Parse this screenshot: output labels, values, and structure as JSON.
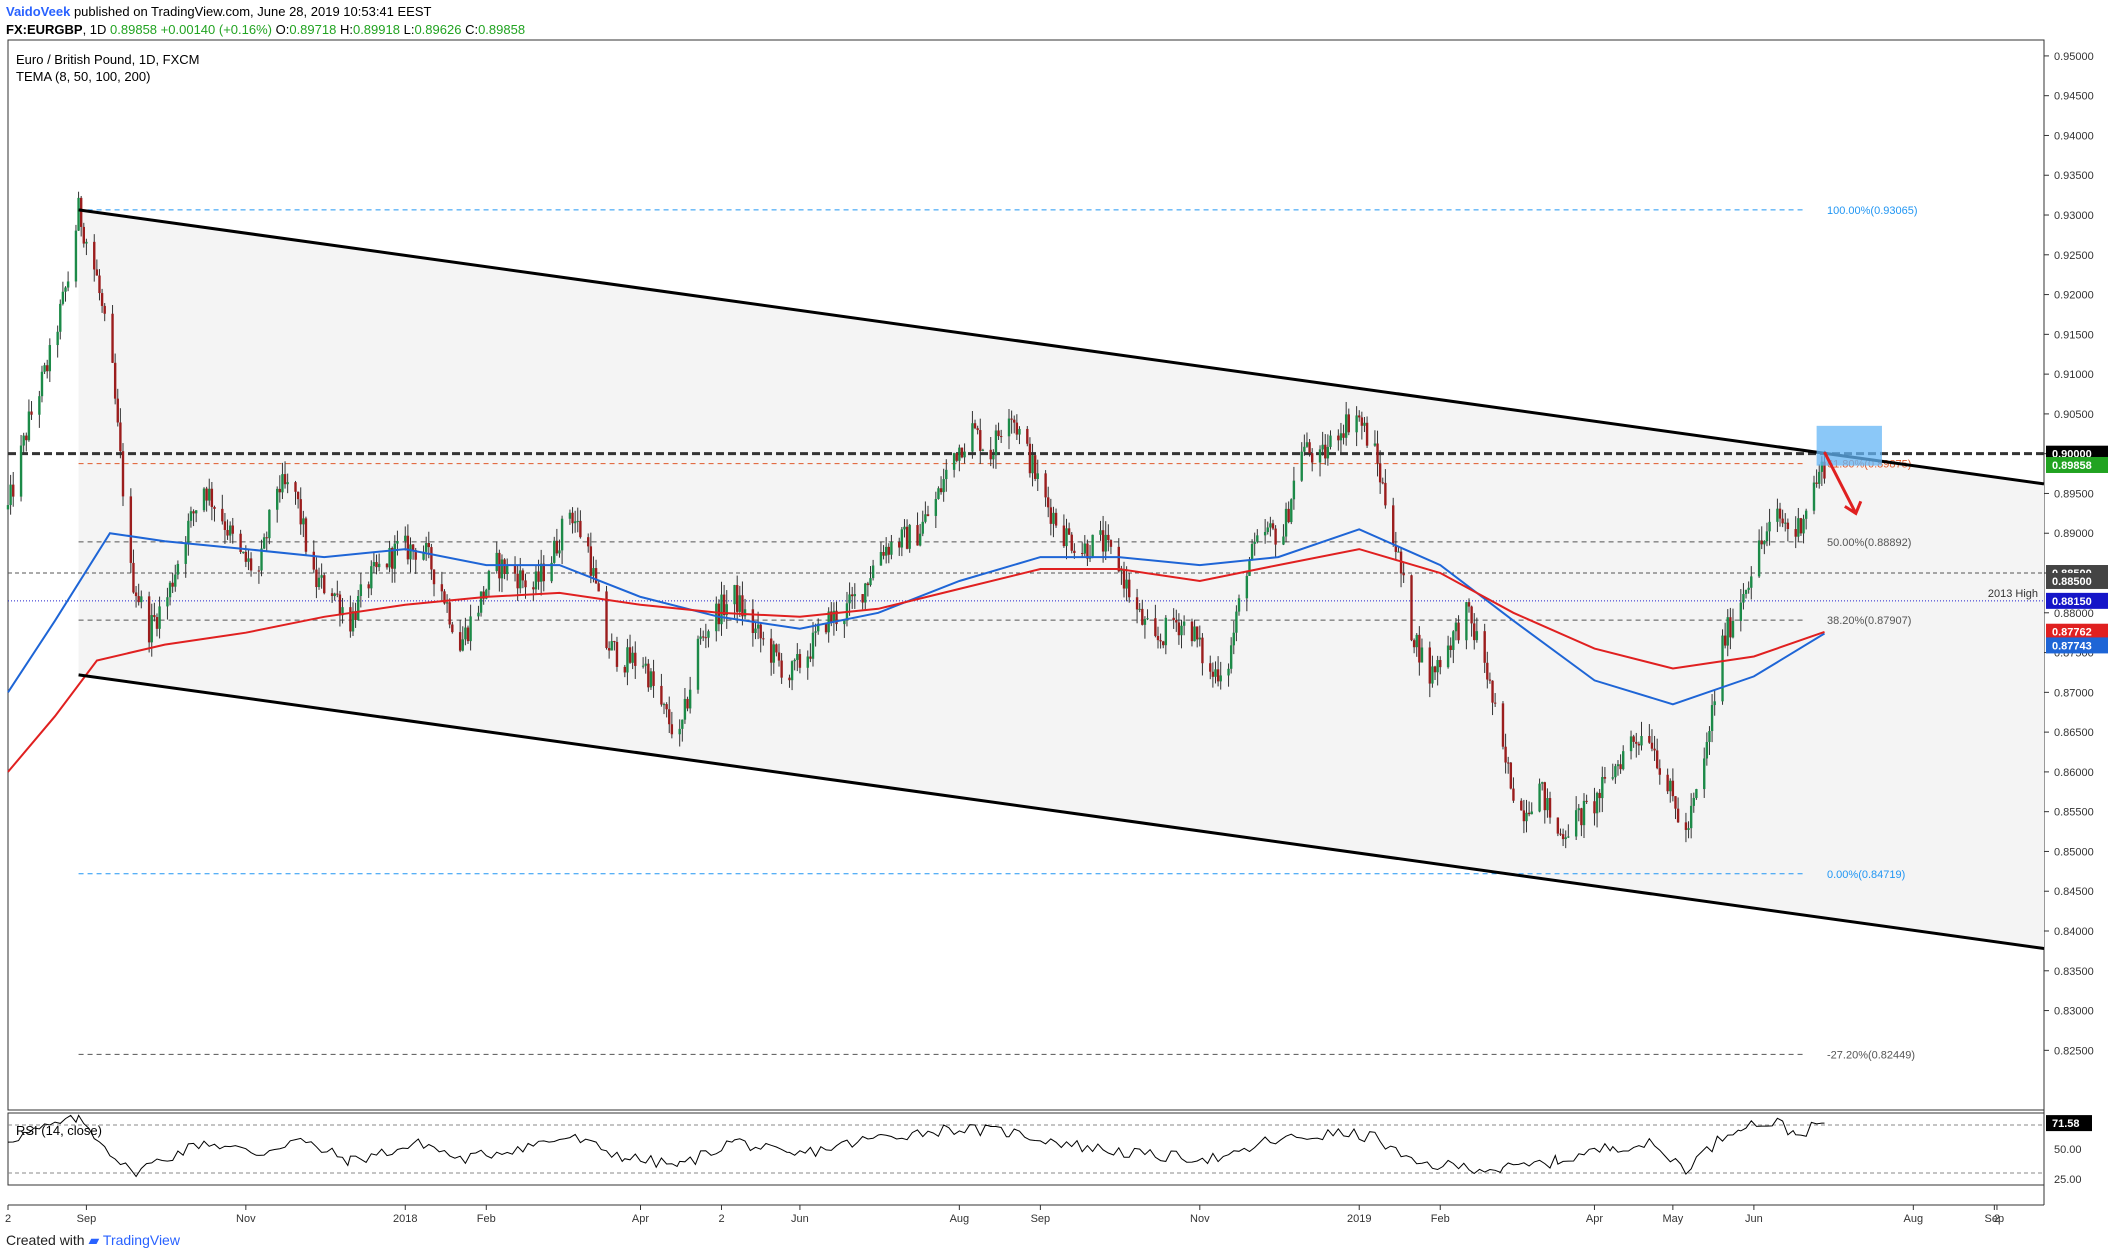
{
  "header": {
    "author": "VaidoVeek",
    "published_text": "published on TradingView.com, June 28, 2019 10:53:41 EEST",
    "symbol": "FX:EURGBP",
    "interval": "1D",
    "last": "0.89858",
    "change": "+0.00140 (+0.16%)",
    "o_label": "O:",
    "open": "0.89718",
    "h_label": "H:",
    "high": "0.89918",
    "l_label": "L:",
    "low": "0.89626",
    "c_label": "C:",
    "close": "0.89858"
  },
  "legend": {
    "title": "Euro / British Pound, 1D, FXCM",
    "indicator": "TEMA (8, 50, 100, 200)"
  },
  "footer": {
    "created_with": "Created with",
    "brand": "TradingView"
  },
  "chart_data": [
    {
      "type": "candlestick",
      "title": "Euro / British Pound, 1D, FXCM",
      "ylim": [
        0.8175,
        0.952
      ],
      "y_ticks": [
        "0.95000",
        "0.94500",
        "0.94000",
        "0.93500",
        "0.93000",
        "0.92500",
        "0.92000",
        "0.91500",
        "0.91000",
        "0.90500",
        "0.90000",
        "0.89500",
        "0.89000",
        "0.88500",
        "0.88000",
        "0.87500",
        "0.87000",
        "0.86500",
        "0.86000",
        "0.85500",
        "0.85000",
        "0.84500",
        "0.84000",
        "0.83500",
        "0.83000",
        "0.82500"
      ],
      "x_range": [
        "2017-08-02",
        "2019-09-20"
      ],
      "x_ticks": [
        {
          "label": "2",
          "date": "2017-08-02"
        },
        {
          "label": "Sep",
          "date": "2017-09-01"
        },
        {
          "label": "Nov",
          "date": "2017-11-01"
        },
        {
          "label": "2018",
          "date": "2018-01-01"
        },
        {
          "label": "Feb",
          "date": "2018-02-01"
        },
        {
          "label": "Apr",
          "date": "2018-04-01"
        },
        {
          "label": "2",
          "date": "2018-05-02"
        },
        {
          "label": "Jun",
          "date": "2018-06-01"
        },
        {
          "label": "Aug",
          "date": "2018-08-01"
        },
        {
          "label": "Sep",
          "date": "2018-09-01"
        },
        {
          "label": "Nov",
          "date": "2018-11-01"
        },
        {
          "label": "2019",
          "date": "2019-01-01"
        },
        {
          "label": "Feb",
          "date": "2019-02-01"
        },
        {
          "label": "Apr",
          "date": "2019-04-01"
        },
        {
          "label": "May",
          "date": "2019-05-01"
        },
        {
          "label": "Jun",
          "date": "2019-06-01"
        },
        {
          "label": "Aug",
          "date": "2019-08-01"
        },
        {
          "label": "Sep",
          "date": "2019-09-01"
        },
        {
          "label": "2",
          "date": "2019-09-02"
        }
      ],
      "price_path": [
        [
          "2017-08-02",
          0.893
        ],
        [
          "2017-08-10",
          0.904
        ],
        [
          "2017-08-18",
          0.912
        ],
        [
          "2017-08-25",
          0.922
        ],
        [
          "2017-08-29",
          0.9306
        ],
        [
          "2017-09-05",
          0.922
        ],
        [
          "2017-09-11",
          0.91
        ],
        [
          "2017-09-18",
          0.885
        ],
        [
          "2017-09-25",
          0.878
        ],
        [
          "2017-10-02",
          0.882
        ],
        [
          "2017-10-09",
          0.89
        ],
        [
          "2017-10-16",
          0.896
        ],
        [
          "2017-10-23",
          0.892
        ],
        [
          "2017-10-30",
          0.887
        ],
        [
          "2017-11-06",
          0.885
        ],
        [
          "2017-11-13",
          0.896
        ],
        [
          "2017-11-20",
          0.895
        ],
        [
          "2017-11-27",
          0.884
        ],
        [
          "2017-12-04",
          0.883
        ],
        [
          "2017-12-11",
          0.879
        ],
        [
          "2017-12-18",
          0.884
        ],
        [
          "2017-12-29",
          0.888
        ],
        [
          "2018-01-08",
          0.888
        ],
        [
          "2018-01-15",
          0.883
        ],
        [
          "2018-01-22",
          0.876
        ],
        [
          "2018-01-29",
          0.881
        ],
        [
          "2018-02-05",
          0.886
        ],
        [
          "2018-02-12",
          0.885
        ],
        [
          "2018-02-19",
          0.883
        ],
        [
          "2018-02-26",
          0.887
        ],
        [
          "2018-03-05",
          0.893
        ],
        [
          "2018-03-12",
          0.888
        ],
        [
          "2018-03-19",
          0.876
        ],
        [
          "2018-03-26",
          0.874
        ],
        [
          "2018-04-02",
          0.874
        ],
        [
          "2018-04-09",
          0.868
        ],
        [
          "2018-04-16",
          0.864
        ],
        [
          "2018-04-23",
          0.876
        ],
        [
          "2018-04-30",
          0.88
        ],
        [
          "2018-05-07",
          0.882
        ],
        [
          "2018-05-14",
          0.878
        ],
        [
          "2018-05-21",
          0.875
        ],
        [
          "2018-05-28",
          0.872
        ],
        [
          "2018-06-04",
          0.875
        ],
        [
          "2018-06-11",
          0.879
        ],
        [
          "2018-06-18",
          0.88
        ],
        [
          "2018-06-25",
          0.883
        ],
        [
          "2018-07-02",
          0.888
        ],
        [
          "2018-07-09",
          0.889
        ],
        [
          "2018-07-16",
          0.89
        ],
        [
          "2018-07-23",
          0.894
        ],
        [
          "2018-07-30",
          0.9
        ],
        [
          "2018-08-06",
          0.903
        ],
        [
          "2018-08-13",
          0.9
        ],
        [
          "2018-08-20",
          0.906
        ],
        [
          "2018-08-27",
          0.9
        ],
        [
          "2018-09-03",
          0.894
        ],
        [
          "2018-09-10",
          0.89
        ],
        [
          "2018-09-17",
          0.888
        ],
        [
          "2018-09-24",
          0.889
        ],
        [
          "2018-10-01",
          0.886
        ],
        [
          "2018-10-08",
          0.88
        ],
        [
          "2018-10-15",
          0.876
        ],
        [
          "2018-10-22",
          0.879
        ],
        [
          "2018-10-29",
          0.878
        ],
        [
          "2018-11-05",
          0.872
        ],
        [
          "2018-11-12",
          0.874
        ],
        [
          "2018-11-19",
          0.886
        ],
        [
          "2018-11-26",
          0.89
        ],
        [
          "2018-12-03",
          0.89
        ],
        [
          "2018-12-10",
          0.901
        ],
        [
          "2018-12-17",
          0.899
        ],
        [
          "2018-12-24",
          0.903
        ],
        [
          "2018-12-31",
          0.905
        ],
        [
          "2019-01-07",
          0.9
        ],
        [
          "2019-01-14",
          0.89
        ],
        [
          "2019-01-21",
          0.878
        ],
        [
          "2019-01-28",
          0.872
        ],
        [
          "2019-02-04",
          0.876
        ],
        [
          "2019-02-11",
          0.88
        ],
        [
          "2019-02-18",
          0.874
        ],
        [
          "2019-02-25",
          0.862
        ],
        [
          "2019-03-04",
          0.855
        ],
        [
          "2019-03-11",
          0.858
        ],
        [
          "2019-03-18",
          0.852
        ],
        [
          "2019-03-25",
          0.854
        ],
        [
          "2019-04-01",
          0.856
        ],
        [
          "2019-04-08",
          0.86
        ],
        [
          "2019-04-15",
          0.864
        ],
        [
          "2019-04-22",
          0.865
        ],
        [
          "2019-04-29",
          0.858
        ],
        [
          "2019-05-06",
          0.852
        ],
        [
          "2019-05-13",
          0.861
        ],
        [
          "2019-05-20",
          0.876
        ],
        [
          "2019-05-27",
          0.882
        ],
        [
          "2019-06-03",
          0.888
        ],
        [
          "2019-06-10",
          0.892
        ],
        [
          "2019-06-17",
          0.89
        ],
        [
          "2019-06-24",
          0.896
        ],
        [
          "2019-06-28",
          0.8986
        ]
      ],
      "series": [
        {
          "name": "TEMA 100",
          "color": "#1e65d6",
          "points": [
            [
              "2017-08-02",
              0.87
            ],
            [
              "2017-08-20",
              0.879
            ],
            [
              "2017-09-10",
              0.89
            ],
            [
              "2017-10-01",
              0.889
            ],
            [
              "2017-11-01",
              0.888
            ],
            [
              "2017-12-01",
              0.887
            ],
            [
              "2018-01-01",
              0.888
            ],
            [
              "2018-02-01",
              0.886
            ],
            [
              "2018-03-01",
              0.886
            ],
            [
              "2018-04-01",
              0.882
            ],
            [
              "2018-05-01",
              0.8795
            ],
            [
              "2018-06-01",
              0.878
            ],
            [
              "2018-07-01",
              0.88
            ],
            [
              "2018-08-01",
              0.884
            ],
            [
              "2018-09-01",
              0.887
            ],
            [
              "2018-10-01",
              0.887
            ],
            [
              "2018-11-01",
              0.886
            ],
            [
              "2018-12-01",
              0.887
            ],
            [
              "2019-01-01",
              0.8905
            ],
            [
              "2019-02-01",
              0.886
            ],
            [
              "2019-03-01",
              0.879
            ],
            [
              "2019-04-01",
              0.8715
            ],
            [
              "2019-05-01",
              0.8685
            ],
            [
              "2019-06-01",
              0.872
            ],
            [
              "2019-06-28",
              0.8774
            ]
          ]
        },
        {
          "name": "TEMA 200",
          "color": "#e02020",
          "points": [
            [
              "2017-08-02",
              0.86
            ],
            [
              "2017-08-20",
              0.867
            ],
            [
              "2017-09-05",
              0.874
            ],
            [
              "2017-10-01",
              0.876
            ],
            [
              "2017-11-01",
              0.8775
            ],
            [
              "2017-12-01",
              0.8795
            ],
            [
              "2018-01-01",
              0.881
            ],
            [
              "2018-02-01",
              0.882
            ],
            [
              "2018-03-01",
              0.8825
            ],
            [
              "2018-04-01",
              0.881
            ],
            [
              "2018-05-01",
              0.88
            ],
            [
              "2018-06-01",
              0.8795
            ],
            [
              "2018-07-01",
              0.8805
            ],
            [
              "2018-08-01",
              0.883
            ],
            [
              "2018-09-01",
              0.8855
            ],
            [
              "2018-10-01",
              0.8855
            ],
            [
              "2018-11-01",
              0.884
            ],
            [
              "2018-12-01",
              0.886
            ],
            [
              "2019-01-01",
              0.888
            ],
            [
              "2019-02-01",
              0.885
            ],
            [
              "2019-03-01",
              0.88
            ],
            [
              "2019-04-01",
              0.8755
            ],
            [
              "2019-05-01",
              0.873
            ],
            [
              "2019-06-01",
              0.8745
            ],
            [
              "2019-06-28",
              0.8776
            ]
          ]
        }
      ],
      "trendlines": [
        {
          "name": "channel-top",
          "from": [
            "2017-08-29",
            0.93065
          ],
          "to": [
            "2019-09-20",
            0.8962
          ],
          "color": "#000000"
        },
        {
          "name": "channel-bottom",
          "from": [
            "2017-08-29",
            0.8722
          ],
          "to": [
            "2019-09-20",
            0.8378
          ],
          "color": "#000000"
        }
      ],
      "fibonacci": [
        {
          "label": "100.00%(0.93065)",
          "value": 0.93065,
          "color": "#2196f3"
        },
        {
          "label": "61.80%(0.89875)",
          "value": 0.89875,
          "color": "#e05a2b"
        },
        {
          "label": "50.00%(0.88892)",
          "value": 0.88892,
          "color": "#555555"
        },
        {
          "label": "38.20%(0.87907)",
          "value": 0.87907,
          "color": "#555555"
        },
        {
          "label": "0.00%(0.84719)",
          "value": 0.84719,
          "color": "#2196f3"
        },
        {
          "label": "-27.20%(0.82449)",
          "value": 0.82449,
          "color": "#555555"
        }
      ],
      "horizontal_levels": [
        {
          "label": "0.90000",
          "value": 0.9,
          "color": "#333333"
        },
        {
          "label": "0.88500",
          "value": 0.885,
          "color": "#555555"
        },
        {
          "label": "2013 High",
          "value": 0.8815,
          "color": "#2222cc"
        }
      ],
      "annotations": [
        {
          "text": "2013 High",
          "value": 0.8815
        }
      ],
      "target_zone": {
        "from": "2019-06-25",
        "to": "2019-07-20",
        "low": 0.8985,
        "high": 0.9035,
        "color": "#64b5f6"
      },
      "arrow": {
        "from": [
          "2019-06-28",
          0.9002
        ],
        "to": [
          "2019-07-10",
          0.8925
        ],
        "color": "#e02020"
      },
      "price_tags": [
        {
          "label": "0.95000",
          "value": 0.95
        },
        {
          "label": "0.90000",
          "value": 0.9,
          "bg": "#000000",
          "fg": "#ffffff"
        },
        {
          "label": "0.89858",
          "value": 0.89858,
          "bg": "#21a321",
          "fg": "#ffffff"
        },
        {
          "label": "0.88500",
          "value": 0.885,
          "bg": "#444444",
          "fg": "#ffffff"
        },
        {
          "label": "0.88500",
          "value": 0.884,
          "bg": "#444444",
          "fg": "#ffffff"
        },
        {
          "label": "0.88150",
          "value": 0.8815,
          "bg": "#1515c8",
          "fg": "#ffffff"
        },
        {
          "label": "0.87762",
          "value": 0.87762,
          "bg": "#e02020",
          "fg": "#ffffff"
        },
        {
          "label": "0.87743",
          "value": 0.8759,
          "bg": "#1e65d6",
          "fg": "#ffffff"
        }
      ]
    },
    {
      "type": "line",
      "title": "RSI (14, close)",
      "ylim": [
        20,
        80
      ],
      "y_ticks": [
        "75.00",
        "50.00",
        "25.00"
      ],
      "last_value": "71.58",
      "reference_levels": [
        70,
        30
      ],
      "series": [
        {
          "name": "RSI (14, close)",
          "color": "#000000",
          "points": [
            [
              "2017-08-02",
              58
            ],
            [
              "2017-08-29",
              76
            ],
            [
              "2017-09-18",
              30
            ],
            [
              "2017-10-16",
              56
            ],
            [
              "2017-11-06",
              46
            ],
            [
              "2017-11-20",
              58
            ],
            [
              "2017-12-11",
              40
            ],
            [
              "2018-01-08",
              55
            ],
            [
              "2018-01-22",
              41
            ],
            [
              "2018-03-05",
              60
            ],
            [
              "2018-03-26",
              43
            ],
            [
              "2018-04-16",
              36
            ],
            [
              "2018-05-07",
              57
            ],
            [
              "2018-05-28",
              44
            ],
            [
              "2018-07-02",
              60
            ],
            [
              "2018-07-30",
              67
            ],
            [
              "2018-08-20",
              64
            ],
            [
              "2018-09-17",
              52
            ],
            [
              "2018-10-15",
              44
            ],
            [
              "2018-11-12",
              42
            ],
            [
              "2018-11-26",
              56
            ],
            [
              "2018-12-24",
              63
            ],
            [
              "2019-01-07",
              60
            ],
            [
              "2019-01-21",
              38
            ],
            [
              "2019-02-25",
              33
            ],
            [
              "2019-03-18",
              40
            ],
            [
              "2019-04-08",
              52
            ],
            [
              "2019-04-22",
              54
            ],
            [
              "2019-05-06",
              34
            ],
            [
              "2019-05-20",
              60
            ],
            [
              "2019-05-27",
              70
            ],
            [
              "2019-06-10",
              72
            ],
            [
              "2019-06-17",
              62
            ],
            [
              "2019-06-28",
              71.58
            ]
          ]
        }
      ]
    }
  ]
}
